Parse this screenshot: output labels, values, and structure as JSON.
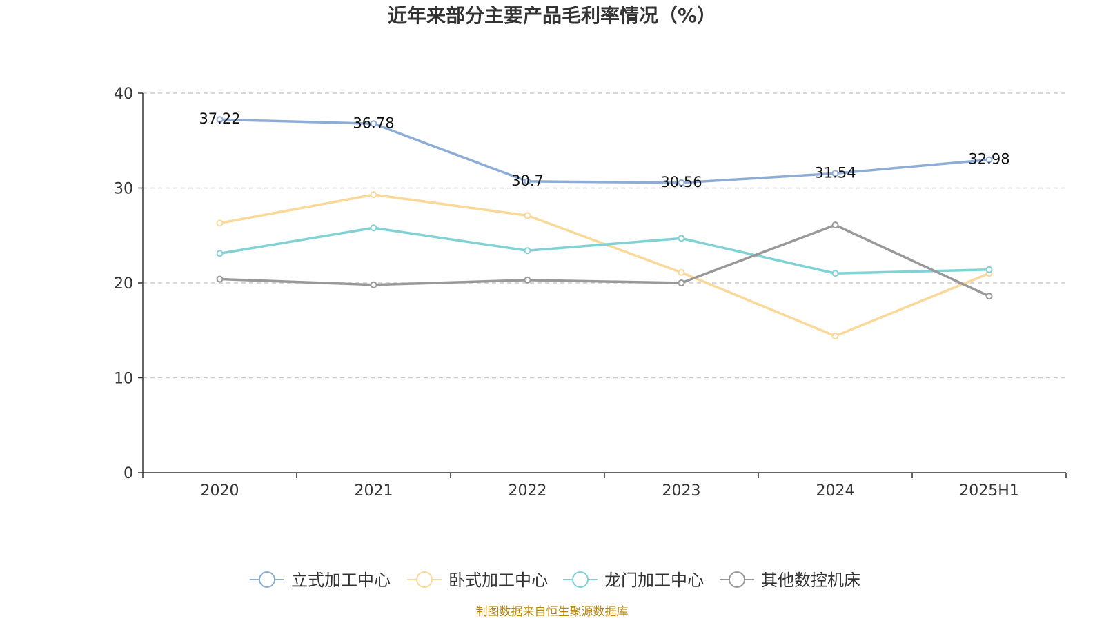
{
  "title": "近年来部分主要产品毛利率情况（%）",
  "source": "制图数据来自恒生聚源数据库",
  "chart_data": {
    "type": "line",
    "title": "近年来部分主要产品毛利率情况（%）",
    "categories": [
      "2020",
      "2021",
      "2022",
      "2023",
      "2024",
      "2025H1"
    ],
    "ylim": [
      0,
      40
    ],
    "yticks": [
      0,
      10,
      20,
      30,
      40
    ],
    "grid": true,
    "legend_position": "bottom",
    "series": [
      {
        "name": "立式加工中心",
        "color": "#8eadd6",
        "values": [
          37.22,
          36.78,
          30.7,
          30.56,
          31.54,
          32.98
        ],
        "labels": [
          "37.22",
          "36.78",
          "30.7",
          "30.56",
          "31.54",
          "32.98"
        ]
      },
      {
        "name": "卧式加工中心",
        "color": "#fad998",
        "values": [
          26.3,
          29.3,
          27.1,
          21.1,
          14.4,
          21.0
        ]
      },
      {
        "name": "龙门加工中心",
        "color": "#80d2d4",
        "values": [
          23.1,
          25.8,
          23.4,
          24.7,
          21.0,
          21.4
        ]
      },
      {
        "name": "其他数控机床",
        "color": "#999999",
        "values": [
          20.4,
          19.8,
          20.3,
          20.0,
          26.1,
          18.6
        ]
      }
    ]
  }
}
